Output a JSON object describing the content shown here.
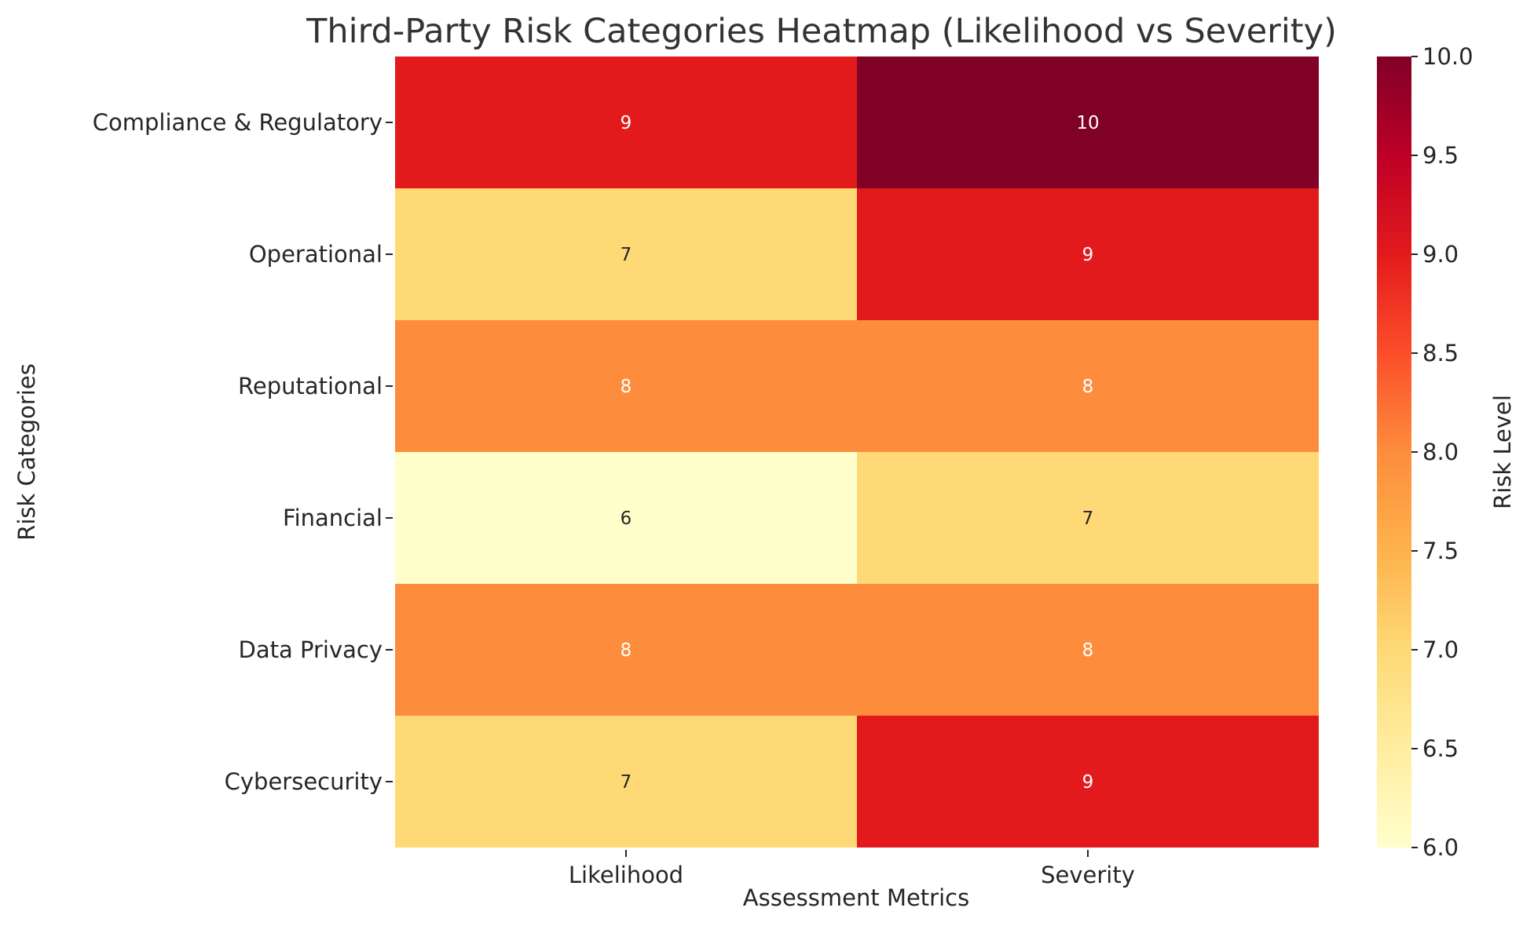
{
  "chart_data": {
    "type": "heatmap",
    "title": "Third-Party Risk Categories Heatmap (Likelihood vs Severity)",
    "xlabel": "Assessment Metrics",
    "ylabel": "Risk Categories",
    "columns": [
      "Likelihood",
      "Severity"
    ],
    "rows": [
      "Compliance & Regulatory",
      "Operational",
      "Reputational",
      "Financial",
      "Data Privacy",
      "Cybersecurity"
    ],
    "values": [
      [
        9,
        10
      ],
      [
        7,
        9
      ],
      [
        8,
        8
      ],
      [
        6,
        7
      ],
      [
        8,
        8
      ],
      [
        7,
        9
      ]
    ],
    "colorbar": {
      "label": "Risk Level",
      "range": [
        6.0,
        10.0
      ],
      "ticks": [
        "6.0",
        "6.5",
        "7.0",
        "7.5",
        "8.0",
        "8.5",
        "9.0",
        "9.5",
        "10.0"
      ],
      "colormap": "YlOrRd"
    },
    "colors": {
      "6": "#ffffcc",
      "7": "#fed976",
      "8": "#fd8d3c",
      "9": "#e31a1c",
      "10": "#800026"
    },
    "cell_text_colors": {
      "light": "#ffffff",
      "dark": "#262626"
    },
    "grid": false
  }
}
